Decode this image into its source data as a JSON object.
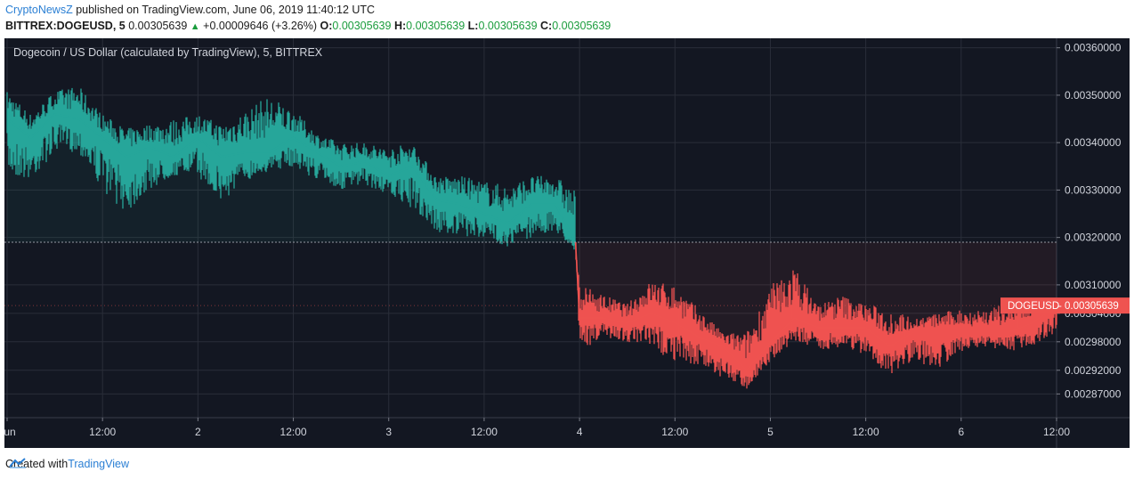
{
  "header": {
    "brand": "CryptoNewsZ",
    "published_text": " published on TradingView.com, June 06, 2019 11:40:12 UTC",
    "symbol": "BITTREX:DOGEUSD, 5",
    "price": "0.00305639",
    "change": "+0.00009646 (+3.26%)",
    "o_label": "O:",
    "o_value": "0.00305639",
    "h_label": "H:",
    "h_value": "0.00305639",
    "l_label": "L:",
    "l_value": "0.00305639",
    "c_label": "C:",
    "c_value": "0.00305639"
  },
  "footer": {
    "created_with": "Created with",
    "brand": "TradingView"
  },
  "colors": {
    "up": "#26a69a",
    "down": "#ef5350",
    "background": "#131722",
    "grid": "#2a2e39",
    "axis_text": "#d1d4dc",
    "brand": "#2a7fd4"
  },
  "chart_data": {
    "type": "area",
    "title": "Dogecoin / US Dollar (calculated by TradingView), 5, BITTREX",
    "symbol_label": "DOGEUSD",
    "last_price_label": "0.00305639",
    "last_price": 0.00305639,
    "baseline": 0.00319,
    "ylim": [
      0.00282,
      0.00362
    ],
    "yticks": [
      "0.00360000",
      "0.00350000",
      "0.00340000",
      "0.00330000",
      "0.00320000",
      "0.00310000",
      "0.00304000",
      "0.00298000",
      "0.00292000",
      "0.00287000"
    ],
    "x_range_hours": [
      0,
      132
    ],
    "xticks": [
      {
        "label": "Jun",
        "hour": 0
      },
      {
        "label": "12:00",
        "hour": 12
      },
      {
        "label": "2",
        "hour": 24
      },
      {
        "label": "12:00",
        "hour": 36
      },
      {
        "label": "3",
        "hour": 48
      },
      {
        "label": "12:00",
        "hour": 60
      },
      {
        "label": "4",
        "hour": 72
      },
      {
        "label": "12:00",
        "hour": 84
      },
      {
        "label": "5",
        "hour": 96
      },
      {
        "label": "12:00",
        "hour": 108
      },
      {
        "label": "6",
        "hour": 120
      },
      {
        "label": "12:00",
        "hour": 132
      }
    ],
    "series": [
      {
        "x": [
          0,
          3,
          6,
          9,
          12,
          15,
          18,
          21,
          24,
          27,
          30,
          33,
          36,
          39,
          42,
          45,
          48,
          51,
          54,
          57,
          60,
          63,
          66,
          69,
          71.5
        ],
        "y": [
          0.00345,
          0.00341,
          0.00346,
          0.00345,
          0.00341,
          0.00337,
          0.00339,
          0.00337,
          0.00341,
          0.00337,
          0.00338,
          0.00338,
          0.00341,
          0.00338,
          0.00335,
          0.00336,
          0.00333,
          0.00335,
          0.00328,
          0.00327,
          0.00325,
          0.00323,
          0.00327,
          0.00327,
          0.00319
        ],
        "low": [
          0.00333,
          0.00332,
          0.00338,
          0.00338,
          0.0033,
          0.00325,
          0.0033,
          0.00333,
          0.00333,
          0.00327,
          0.00332,
          0.00334,
          0.00335,
          0.00332,
          0.0033,
          0.00331,
          0.00329,
          0.00326,
          0.00321,
          0.0032,
          0.0032,
          0.00318,
          0.0032,
          0.00321,
          0.00317
        ],
        "high": [
          0.00351,
          0.00346,
          0.00351,
          0.00352,
          0.00346,
          0.00343,
          0.00344,
          0.00345,
          0.00346,
          0.00344,
          0.00347,
          0.0035,
          0.00347,
          0.00342,
          0.0034,
          0.0034,
          0.00339,
          0.0034,
          0.00333,
          0.00333,
          0.00332,
          0.00331,
          0.00333,
          0.00333,
          0.0033
        ]
      },
      {
        "x": [
          71.5,
          72,
          75,
          78,
          81,
          84,
          87,
          90,
          93,
          96,
          99,
          102,
          105,
          108,
          111,
          114,
          117,
          120,
          123,
          126,
          129,
          132
        ],
        "y": [
          0.00319,
          0.00303,
          0.00303,
          0.00302,
          0.00304,
          0.00302,
          0.00299,
          0.00297,
          0.00292,
          0.00298,
          0.00303,
          0.00301,
          0.00301,
          0.00301,
          0.00297,
          0.003,
          0.003,
          0.003,
          0.003,
          0.003,
          0.00302,
          0.00305639
        ],
        "low": [
          0.00317,
          0.00296,
          0.00299,
          0.00298,
          0.00296,
          0.00294,
          0.00293,
          0.0029,
          0.00288,
          0.00294,
          0.00298,
          0.00296,
          0.00297,
          0.00295,
          0.00291,
          0.00294,
          0.00292,
          0.00296,
          0.00297,
          0.00296,
          0.00297,
          0.003
        ],
        "high": [
          0.0032,
          0.0031,
          0.00308,
          0.00306,
          0.00311,
          0.0031,
          0.00305,
          0.003,
          0.003,
          0.0031,
          0.00314,
          0.00306,
          0.00308,
          0.00306,
          0.00305,
          0.00303,
          0.00304,
          0.00305,
          0.00305,
          0.00306,
          0.00306,
          0.00306
        ]
      }
    ]
  }
}
